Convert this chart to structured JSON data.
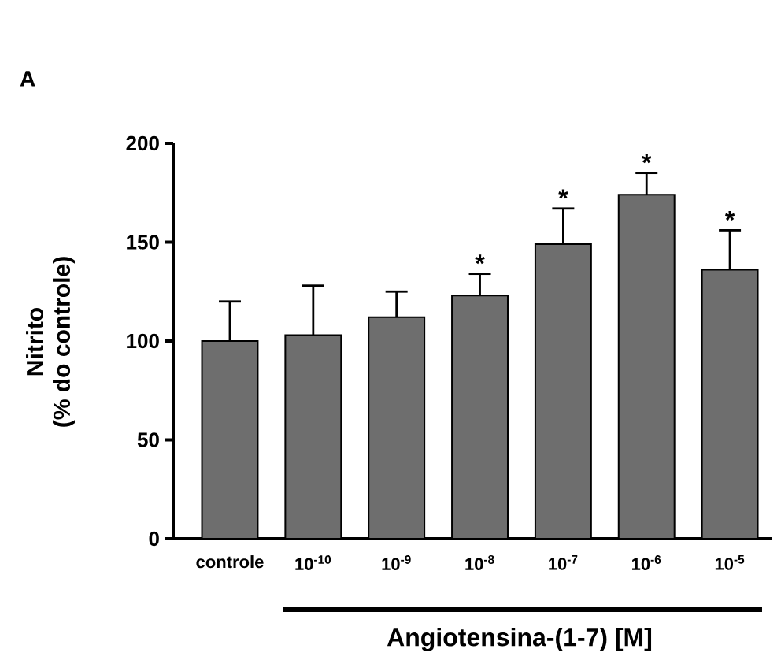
{
  "chart_data": {
    "type": "bar",
    "title": "A",
    "xlabel": "Angiotensina-(1-7) [M]",
    "ylabel": "Nitrito\n(% do controle)",
    "categories": [
      "controle",
      "10$^{-10}$",
      "10$^{-9}$",
      "10$^{-8}$",
      "10$^{-7}$",
      "10$^{-6}$",
      "10$^{-5}$"
    ],
    "values": [
      100,
      103,
      112,
      123,
      149,
      174,
      136
    ],
    "errors": [
      [
        100,
        120
      ],
      [
        103,
        128
      ],
      [
        112,
        125
      ],
      [
        123,
        134
      ],
      [
        149,
        167
      ],
      [
        174,
        185
      ],
      [
        136,
        156
      ]
    ],
    "value_labels": [
      null,
      null,
      null,
      "*",
      "*",
      "*",
      "*"
    ],
    "color": "#6e6e6e",
    "ylim": [
      0,
      200
    ],
    "yticks": [
      0,
      50,
      100,
      150,
      200
    ]
  }
}
